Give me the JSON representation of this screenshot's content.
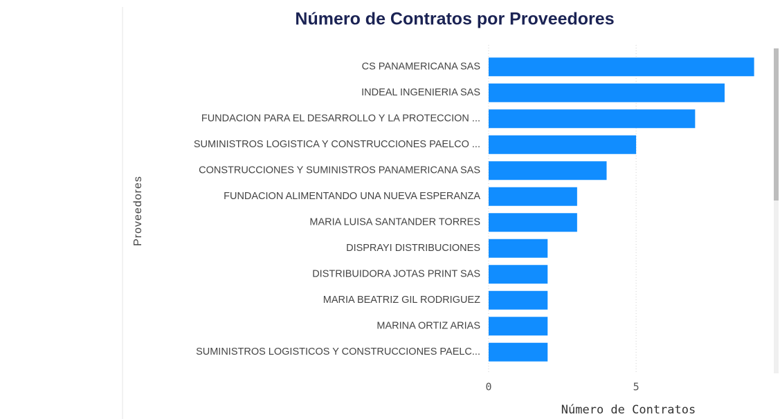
{
  "chart_data": {
    "type": "hbar",
    "title": "Número de Contratos por Proveedores",
    "x_label": "Número de Contratos",
    "y_label": "Proveedores",
    "categories": [
      "CS PANAMERICANA SAS",
      "INDEAL INGENIERIA SAS",
      "FUNDACION PARA EL DESARROLLO Y LA PROTECCION ...",
      "SUMINISTROS LOGISTICA Y CONSTRUCCIONES PAELCO ...",
      "CONSTRUCCIONES Y SUMINISTROS PANAMERICANA SAS",
      "FUNDACION ALIMENTANDO UNA NUEVA ESPERANZA",
      "MARIA LUISA SANTANDER TORRES",
      "DISPRAYI DISTRIBUCIONES",
      "DISTRIBUIDORA JOTAS PRINT SAS",
      "MARIA BEATRIZ GIL RODRIGUEZ",
      "MARINA ORTIZ ARIAS",
      "SUMINISTROS LOGISTICOS Y CONSTRUCCIONES PAELC..."
    ],
    "values": [
      9,
      8,
      7,
      5,
      4,
      3,
      3,
      2,
      2,
      2,
      2,
      2
    ],
    "color": "#118dff",
    "xlim": [
      0,
      9
    ],
    "xticks": [
      0,
      5
    ],
    "grid": true
  }
}
